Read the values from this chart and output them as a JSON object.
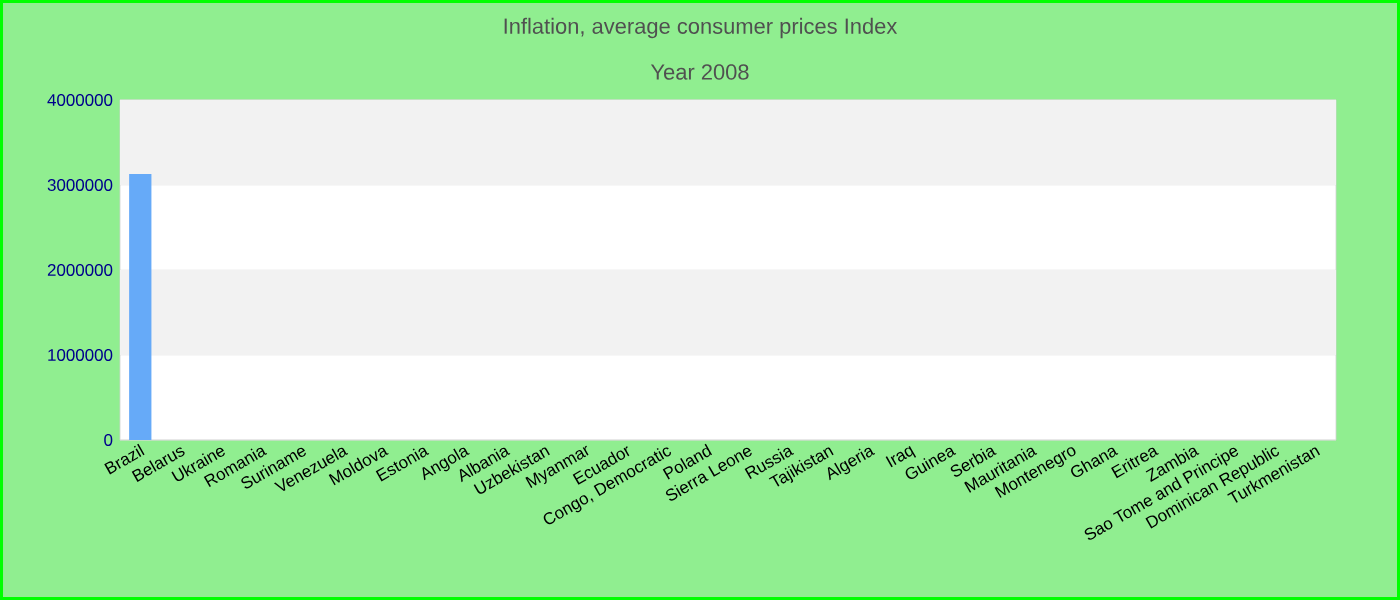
{
  "chart_data": {
    "type": "bar",
    "title": "Inflation, average consumer prices  Index",
    "subtitle": "Year 2008",
    "categories": [
      "Brazil",
      "Belarus",
      "Ukraine",
      "Romania",
      "Suriname",
      "Venezuela",
      "Moldova",
      "Estonia",
      "Angola",
      "Albania",
      "Uzbekistan",
      "Myanmar",
      "Ecuador",
      "Congo, Democratic",
      "Poland",
      "Sierra Leone",
      "Russia",
      "Tajikistan",
      "Algeria",
      "Iraq",
      "Guinea",
      "Serbia",
      "Mauritania",
      "Montenegro",
      "Ghana",
      "Eritrea",
      "Zambia",
      "Sao Tome and Principe",
      "Dominican Republic",
      "Turkmenistan"
    ],
    "values": [
      3130000,
      0,
      0,
      0,
      0,
      0,
      0,
      0,
      0,
      0,
      0,
      0,
      0,
      0,
      0,
      0,
      0,
      0,
      0,
      0,
      0,
      0,
      0,
      0,
      0,
      0,
      0,
      0,
      0,
      0
    ],
    "color": "#66aaf8",
    "ylim": [
      0,
      4000000
    ],
    "yticks": [
      0,
      1000000,
      2000000,
      3000000,
      4000000
    ],
    "grid": "y"
  }
}
